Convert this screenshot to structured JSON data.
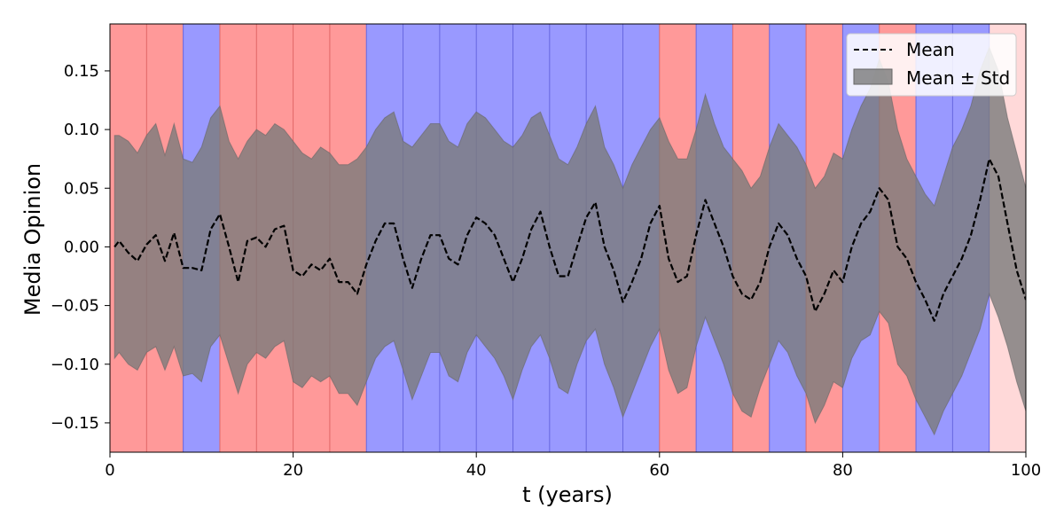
{
  "chart_data": {
    "type": "line",
    "xlabel": "t (years)",
    "ylabel": "Media Opinion",
    "xlim": [
      0,
      100
    ],
    "ylim": [
      -0.175,
      0.19
    ],
    "xticks": [
      0,
      20,
      40,
      60,
      80,
      100
    ],
    "xtick_labels": [
      "0",
      "20",
      "40",
      "60",
      "80",
      "100"
    ],
    "yticks": [
      -0.15,
      -0.1,
      -0.05,
      0.0,
      0.05,
      0.1,
      0.15
    ],
    "ytick_labels": [
      "−0.15",
      "−0.10",
      "−0.05",
      "0.00",
      "0.05",
      "0.10",
      "0.15"
    ],
    "grid": false,
    "legend_position": "top-right",
    "regime_colors": {
      "red": "#ff9999",
      "blue": "#9999ff",
      "light": "#ffd9d9"
    },
    "regime_line_colors": {
      "red": "#e06666",
      "blue": "#6666e0"
    },
    "regimes": [
      {
        "start": 0,
        "end": 4,
        "state": "red"
      },
      {
        "start": 4,
        "end": 8,
        "state": "red"
      },
      {
        "start": 8,
        "end": 12,
        "state": "blue"
      },
      {
        "start": 12,
        "end": 16,
        "state": "red"
      },
      {
        "start": 16,
        "end": 20,
        "state": "red"
      },
      {
        "start": 20,
        "end": 24,
        "state": "red"
      },
      {
        "start": 24,
        "end": 28,
        "state": "red"
      },
      {
        "start": 28,
        "end": 32,
        "state": "blue"
      },
      {
        "start": 32,
        "end": 36,
        "state": "blue"
      },
      {
        "start": 36,
        "end": 40,
        "state": "blue"
      },
      {
        "start": 40,
        "end": 44,
        "state": "blue"
      },
      {
        "start": 44,
        "end": 48,
        "state": "blue"
      },
      {
        "start": 48,
        "end": 52,
        "state": "blue"
      },
      {
        "start": 52,
        "end": 56,
        "state": "blue"
      },
      {
        "start": 56,
        "end": 60,
        "state": "blue"
      },
      {
        "start": 60,
        "end": 64,
        "state": "red"
      },
      {
        "start": 64,
        "end": 68,
        "state": "blue"
      },
      {
        "start": 68,
        "end": 72,
        "state": "red"
      },
      {
        "start": 72,
        "end": 76,
        "state": "blue"
      },
      {
        "start": 76,
        "end": 80,
        "state": "red"
      },
      {
        "start": 80,
        "end": 84,
        "state": "blue"
      },
      {
        "start": 84,
        "end": 88,
        "state": "red"
      },
      {
        "start": 88,
        "end": 92,
        "state": "blue"
      },
      {
        "start": 92,
        "end": 96,
        "state": "blue"
      },
      {
        "start": 96,
        "end": 100,
        "state": "light"
      }
    ],
    "series": [
      {
        "name": "Mean",
        "style": "dashed",
        "color": "#000000",
        "x": [
          0.5,
          1,
          2,
          3,
          4,
          5,
          6,
          7,
          8,
          9,
          10,
          11,
          12,
          13,
          14,
          15,
          16,
          17,
          18,
          19,
          20,
          21,
          22,
          23,
          24,
          25,
          26,
          27,
          28,
          29,
          30,
          31,
          32,
          33,
          34,
          35,
          36,
          37,
          38,
          39,
          40,
          41,
          42,
          43,
          44,
          45,
          46,
          47,
          48,
          49,
          50,
          51,
          52,
          53,
          54,
          55,
          56,
          57,
          58,
          59,
          60,
          61,
          62,
          63,
          64,
          65,
          66,
          67,
          68,
          69,
          70,
          71,
          72,
          73,
          74,
          75,
          76,
          77,
          78,
          79,
          80,
          81,
          82,
          83,
          84,
          85,
          86,
          87,
          88,
          89,
          90,
          91,
          92,
          93,
          94,
          95,
          96,
          97,
          98,
          99,
          100
        ],
        "y": [
          0.0,
          0.005,
          -0.005,
          -0.012,
          0.002,
          0.01,
          -0.012,
          0.012,
          -0.018,
          -0.018,
          -0.02,
          0.015,
          0.028,
          0.0,
          -0.03,
          0.005,
          0.008,
          0.0,
          0.015,
          0.018,
          -0.02,
          -0.025,
          -0.015,
          -0.02,
          -0.01,
          -0.03,
          -0.03,
          -0.04,
          -0.015,
          0.005,
          0.02,
          0.02,
          -0.01,
          -0.035,
          -0.01,
          0.01,
          0.01,
          -0.01,
          -0.015,
          0.01,
          0.025,
          0.02,
          0.01,
          -0.01,
          -0.03,
          -0.01,
          0.015,
          0.03,
          0.0,
          -0.025,
          -0.025,
          0.0,
          0.025,
          0.038,
          0.0,
          -0.02,
          -0.047,
          -0.03,
          -0.01,
          0.02,
          0.035,
          -0.01,
          -0.03,
          -0.025,
          0.01,
          0.04,
          0.02,
          0.0,
          -0.025,
          -0.04,
          -0.045,
          -0.03,
          0.0,
          0.02,
          0.01,
          -0.01,
          -0.025,
          -0.055,
          -0.04,
          -0.02,
          -0.03,
          0.0,
          0.02,
          0.03,
          0.05,
          0.04,
          0.0,
          -0.01,
          -0.03,
          -0.045,
          -0.063,
          -0.04,
          -0.025,
          -0.01,
          0.01,
          0.04,
          0.075,
          0.06,
          0.02,
          -0.02,
          -0.045
        ]
      }
    ],
    "band": {
      "name": "Mean ± Std",
      "color": "#7a7a7a",
      "opacity": 0.8,
      "upper": [
        0.095,
        0.095,
        0.09,
        0.08,
        0.095,
        0.105,
        0.078,
        0.105,
        0.075,
        0.072,
        0.085,
        0.11,
        0.12,
        0.09,
        0.075,
        0.09,
        0.1,
        0.095,
        0.105,
        0.1,
        0.09,
        0.08,
        0.075,
        0.085,
        0.08,
        0.07,
        0.07,
        0.075,
        0.085,
        0.1,
        0.11,
        0.115,
        0.09,
        0.085,
        0.095,
        0.105,
        0.105,
        0.09,
        0.085,
        0.105,
        0.115,
        0.11,
        0.1,
        0.09,
        0.085,
        0.095,
        0.11,
        0.115,
        0.095,
        0.075,
        0.07,
        0.085,
        0.105,
        0.12,
        0.085,
        0.07,
        0.05,
        0.07,
        0.085,
        0.1,
        0.11,
        0.09,
        0.075,
        0.075,
        0.1,
        0.13,
        0.105,
        0.085,
        0.075,
        0.065,
        0.05,
        0.06,
        0.085,
        0.105,
        0.095,
        0.085,
        0.07,
        0.05,
        0.06,
        0.08,
        0.075,
        0.1,
        0.12,
        0.135,
        0.16,
        0.14,
        0.1,
        0.075,
        0.06,
        0.045,
        0.035,
        0.06,
        0.085,
        0.1,
        0.12,
        0.15,
        0.17,
        0.15,
        0.11,
        0.08,
        0.05
      ],
      "lower": [
        -0.095,
        -0.09,
        -0.1,
        -0.105,
        -0.09,
        -0.085,
        -0.105,
        -0.085,
        -0.11,
        -0.108,
        -0.115,
        -0.085,
        -0.075,
        -0.1,
        -0.125,
        -0.1,
        -0.09,
        -0.095,
        -0.085,
        -0.08,
        -0.115,
        -0.12,
        -0.11,
        -0.115,
        -0.11,
        -0.125,
        -0.125,
        -0.135,
        -0.115,
        -0.095,
        -0.085,
        -0.08,
        -0.105,
        -0.13,
        -0.11,
        -0.09,
        -0.09,
        -0.11,
        -0.115,
        -0.09,
        -0.075,
        -0.085,
        -0.095,
        -0.11,
        -0.13,
        -0.105,
        -0.085,
        -0.075,
        -0.095,
        -0.12,
        -0.125,
        -0.1,
        -0.08,
        -0.07,
        -0.1,
        -0.12,
        -0.145,
        -0.125,
        -0.105,
        -0.085,
        -0.07,
        -0.105,
        -0.125,
        -0.12,
        -0.085,
        -0.06,
        -0.08,
        -0.1,
        -0.125,
        -0.14,
        -0.145,
        -0.12,
        -0.1,
        -0.08,
        -0.09,
        -0.11,
        -0.125,
        -0.15,
        -0.135,
        -0.115,
        -0.12,
        -0.095,
        -0.08,
        -0.075,
        -0.055,
        -0.065,
        -0.1,
        -0.11,
        -0.13,
        -0.145,
        -0.16,
        -0.14,
        -0.125,
        -0.11,
        -0.09,
        -0.07,
        -0.04,
        -0.06,
        -0.085,
        -0.115,
        -0.14
      ]
    }
  }
}
